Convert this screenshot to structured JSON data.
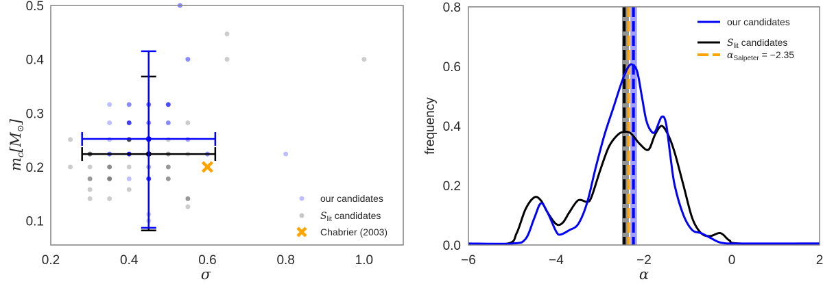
{
  "chart_data": [
    {
      "type": "scatter",
      "title": "",
      "xlabel": "σ",
      "ylabel": "m_c[M_⊙]",
      "xlim": [
        0.2,
        1.1
      ],
      "ylim": [
        0.055,
        0.5
      ],
      "xticks": [
        "0.2",
        "0.4",
        "0.6",
        "0.8",
        "1.0"
      ],
      "yticks": [
        "0.1",
        "0.2",
        "0.3",
        "0.4",
        "0.5"
      ],
      "grid": false,
      "legend_position": "lower right",
      "legend": [
        "our candidates",
        "S_lit candidates",
        "Chabrier (2003)"
      ],
      "series": [
        {
          "name": "our candidates",
          "color": "#0000ff",
          "points": [
            [
              0.35,
              0.316,
              0.25
            ],
            [
              0.4,
              0.316,
              0.45
            ],
            [
              0.45,
              0.316,
              0.55
            ],
            [
              0.5,
              0.316,
              0.7
            ],
            [
              0.35,
              0.282,
              0.25
            ],
            [
              0.4,
              0.282,
              0.75
            ],
            [
              0.45,
              0.282,
              0.45
            ],
            [
              0.5,
              0.282,
              0.45
            ],
            [
              0.35,
              0.251,
              0.25
            ],
            [
              0.45,
              0.251,
              0.9
            ],
            [
              0.55,
              0.251,
              0.35
            ],
            [
              0.35,
              0.224,
              0.6
            ],
            [
              0.4,
              0.224,
              0.9
            ],
            [
              0.6,
              0.224,
              0.45
            ],
            [
              0.4,
              0.178,
              0.25
            ],
            [
              0.45,
              0.178,
              0.8
            ],
            [
              0.55,
              0.4,
              0.45
            ],
            [
              0.8,
              0.224,
              0.25
            ],
            [
              0.53,
              0.5,
              0.45
            ]
          ],
          "errorbar": {
            "x": 0.45,
            "y": 0.252,
            "xerr": [
              0.28,
              0.62
            ],
            "yerr": [
              0.087,
              0.415
            ]
          }
        },
        {
          "name": "S_lit candidates",
          "color": "#000000",
          "points": [
            [
              0.25,
              0.251,
              0.2
            ],
            [
              0.4,
              0.251,
              0.7
            ],
            [
              0.5,
              0.251,
              0.2
            ],
            [
              0.55,
              0.282,
              0.2
            ],
            [
              0.3,
              0.224,
              0.6
            ],
            [
              0.45,
              0.224,
              0.9
            ],
            [
              0.5,
              0.224,
              0.4
            ],
            [
              0.55,
              0.224,
              0.2
            ],
            [
              0.25,
              0.2,
              0.2
            ],
            [
              0.3,
              0.2,
              0.2
            ],
            [
              0.35,
              0.2,
              0.45
            ],
            [
              0.4,
              0.2,
              0.2
            ],
            [
              0.45,
              0.2,
              0.3
            ],
            [
              0.5,
              0.2,
              0.4
            ],
            [
              0.3,
              0.178,
              0.4
            ],
            [
              0.35,
              0.178,
              0.5
            ],
            [
              0.5,
              0.178,
              0.4
            ],
            [
              0.3,
              0.158,
              0.2
            ],
            [
              0.4,
              0.158,
              0.2
            ],
            [
              0.3,
              0.141,
              0.2
            ],
            [
              0.35,
              0.141,
              0.2
            ],
            [
              0.55,
              0.141,
              0.4
            ],
            [
              0.55,
              0.126,
              0.2
            ],
            [
              0.45,
              0.112,
              0.2
            ],
            [
              0.45,
              0.1,
              0.2
            ],
            [
              0.65,
              0.447,
              0.2
            ],
            [
              0.65,
              0.4,
              0.2
            ],
            [
              1.0,
              0.4,
              0.2
            ]
          ],
          "errorbar": {
            "x": 0.45,
            "y": 0.224,
            "xerr": [
              0.28,
              0.62
            ],
            "yerr": [
              0.082,
              0.368
            ]
          }
        },
        {
          "name": "Chabrier (2003)",
          "color": "#ffa500",
          "marker": "x",
          "points": [
            [
              0.6,
              0.2,
              1.0
            ]
          ]
        }
      ]
    },
    {
      "type": "line",
      "title": "",
      "xlabel": "α",
      "ylabel": "frequency",
      "xlim": [
        -6,
        2
      ],
      "ylim": [
        0,
        0.8
      ],
      "xticks": [
        "−6",
        "−4",
        "−2",
        "0",
        "2"
      ],
      "yticks": [
        "0.0",
        "0.2",
        "0.4",
        "0.6",
        "0.8"
      ],
      "grid": false,
      "legend_position": "upper right",
      "legend": [
        "our candidates",
        "S_lit candidates",
        "α_Salpeter = −2.35"
      ],
      "series": [
        {
          "name": "our candidates",
          "color": "#0000ff",
          "x": [
            -6.0,
            -5.0,
            -4.7,
            -4.5,
            -4.35,
            -4.2,
            -4.0,
            -3.9,
            -3.7,
            -3.5,
            -3.3,
            -3.1,
            -2.9,
            -2.7,
            -2.5,
            -2.35,
            -2.25,
            -2.15,
            -2.05,
            -1.95,
            -1.85,
            -1.75,
            -1.6,
            -1.5,
            -1.4,
            -1.3,
            -1.1,
            -0.9,
            -0.7,
            -0.5,
            -0.3,
            -0.1,
            0.1,
            2.0
          ],
          "y": [
            0.005,
            0.005,
            0.02,
            0.09,
            0.14,
            0.11,
            0.045,
            0.035,
            0.05,
            0.07,
            0.14,
            0.26,
            0.37,
            0.46,
            0.55,
            0.6,
            0.605,
            0.58,
            0.5,
            0.42,
            0.385,
            0.38,
            0.43,
            0.41,
            0.3,
            0.2,
            0.1,
            0.05,
            0.04,
            0.025,
            0.01,
            0.005,
            0.005,
            0.005
          ]
        },
        {
          "name": "S_lit candidates",
          "color": "#000000",
          "x": [
            -6.0,
            -5.1,
            -4.9,
            -4.7,
            -4.5,
            -4.35,
            -4.2,
            -4.0,
            -3.85,
            -3.7,
            -3.5,
            -3.3,
            -3.2,
            -3.0,
            -2.8,
            -2.6,
            -2.45,
            -2.3,
            -2.1,
            -1.9,
            -1.75,
            -1.6,
            -1.45,
            -1.3,
            -1.1,
            -0.9,
            -0.7,
            -0.5,
            -0.3,
            -0.2,
            -0.05,
            0.2,
            2.0
          ],
          "y": [
            0.005,
            0.005,
            0.04,
            0.12,
            0.16,
            0.15,
            0.11,
            0.07,
            0.075,
            0.11,
            0.15,
            0.145,
            0.16,
            0.25,
            0.33,
            0.37,
            0.38,
            0.375,
            0.34,
            0.32,
            0.37,
            0.4,
            0.37,
            0.31,
            0.2,
            0.09,
            0.04,
            0.03,
            0.04,
            0.035,
            0.015,
            0.005,
            0.005
          ]
        }
      ],
      "vertical_bands": [
        {
          "name": "S_lit median band",
          "x0": -2.5,
          "x1": -2.34,
          "color": "#808080",
          "line": -2.45,
          "line_color": "#000000"
        },
        {
          "name": "our candidates median band",
          "x0": -2.31,
          "x1": -2.16,
          "color": "#8a8aff",
          "line": -2.24,
          "line_color": "#0000ff"
        },
        {
          "name": "α_Salpeter = −2.35",
          "line": -2.35,
          "line_color": "#ffa500"
        }
      ]
    }
  ],
  "left_panel": {
    "xlabel": "σ",
    "ylabel_main": "m",
    "ylabel_sub": "c",
    "ylabel_rest": "[M",
    "ylabel_sun": "⊙",
    "ylabel_close": "]",
    "legend": {
      "our": "our candidates",
      "slit_s": "S",
      "slit_sub": "lit",
      "slit_rest": " candidates",
      "chabrier": "Chabrier (2003)"
    }
  },
  "right_panel": {
    "xlabel": "α",
    "ylabel": "frequency",
    "legend": {
      "our": "our candidates",
      "slit_s": "S",
      "slit_sub": "lit",
      "slit_rest": " candidates",
      "alpha": "α",
      "alpha_sub": "Salpeter",
      "alpha_rest": " = −2.35"
    }
  }
}
